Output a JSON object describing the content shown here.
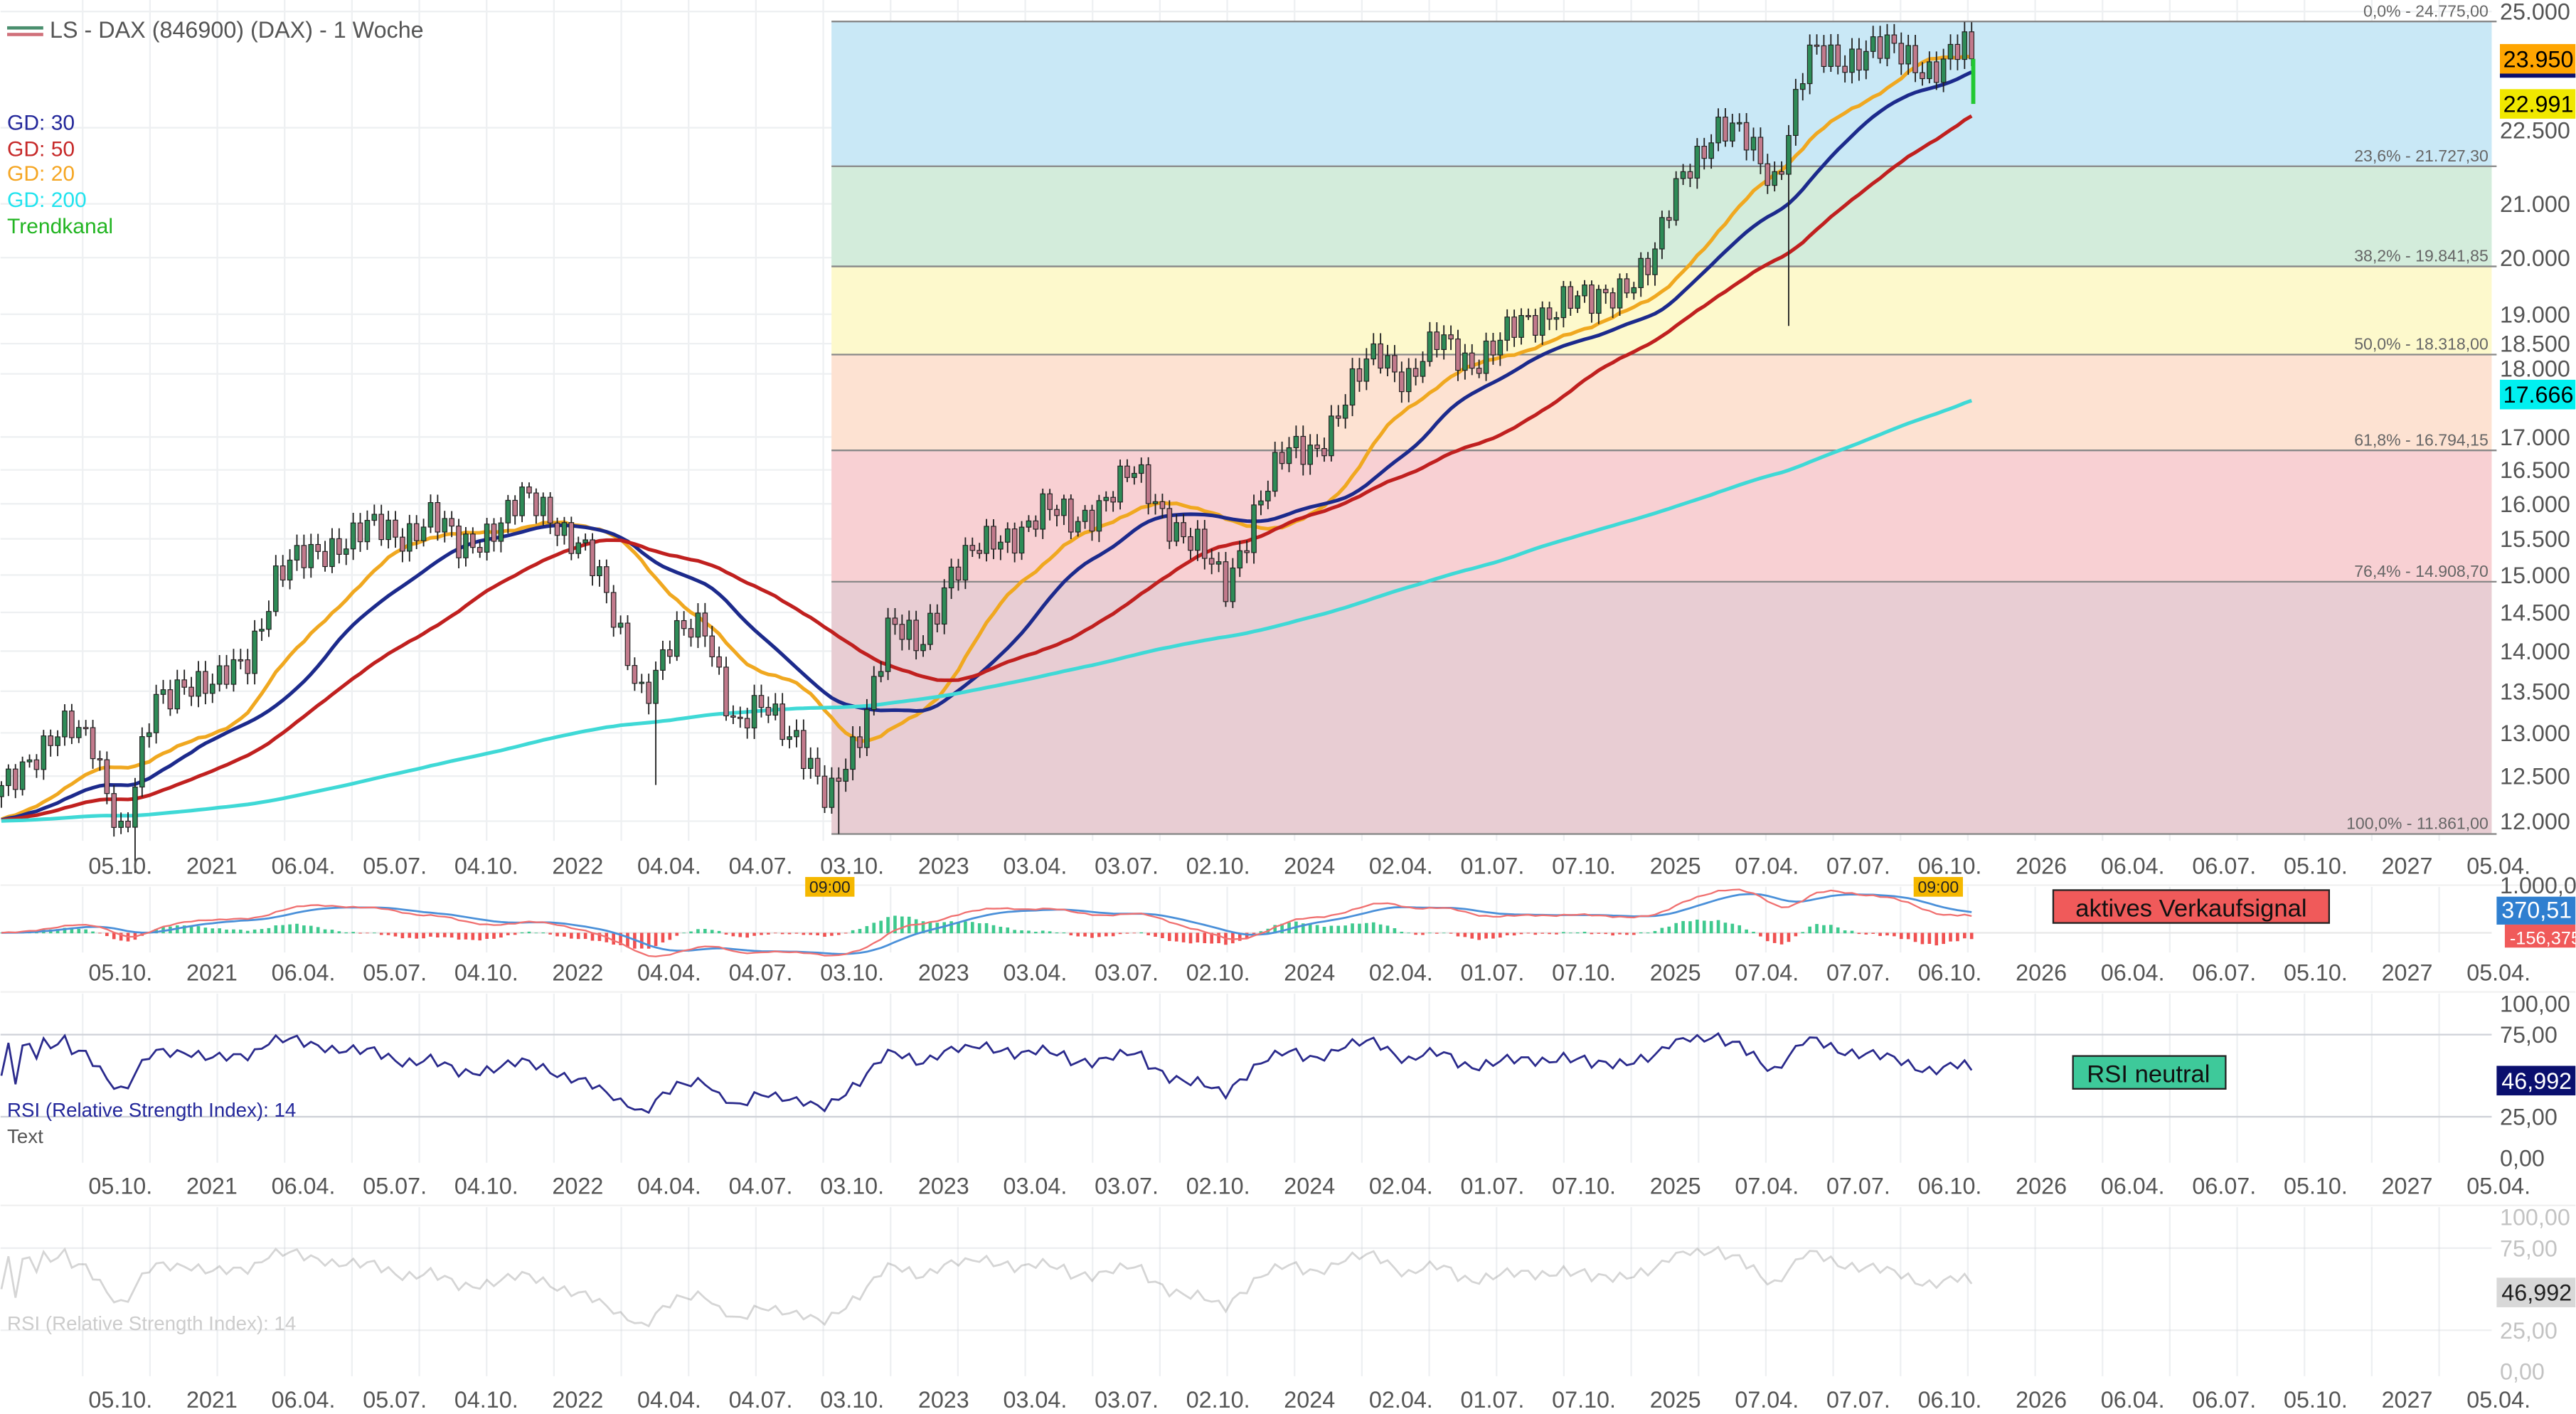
{
  "header": {
    "title": "LS - DAX (846900) (DAX) - 1 Woche"
  },
  "legend": [
    {
      "label": "GD: 30",
      "color": "#23279a"
    },
    {
      "label": "GD: 50",
      "color": "#c62828"
    },
    {
      "label": "GD: 20",
      "color": "#f5a623"
    },
    {
      "label": "GD: 200",
      "color": "#22e3ee"
    },
    {
      "label": "Trendkanal",
      "color": "#22b522"
    }
  ],
  "x_tick_labels": [
    "05.10.",
    "2021",
    "06.04.",
    "05.07.",
    "04.10.",
    "2022",
    "04.04.",
    "04.07.",
    "03.10.",
    "2023",
    "03.04.",
    "03.07.",
    "02.10.",
    "2024",
    "02.04.",
    "01.07.",
    "07.10.",
    "2025",
    "07.04.",
    "07.07.",
    "06.10.",
    "2026",
    "06.04.",
    "06.07.",
    "05.10.",
    "2027",
    "05.04."
  ],
  "time_badges": [
    "09:00",
    "09:00"
  ],
  "chart_data": [
    {
      "type": "candlestick",
      "title": "LS - DAX (846900) (DAX) - 1 Woche",
      "interval": "weekly",
      "scale": "log",
      "ylim": [
        11700,
        25000
      ],
      "monthly_start": "2020-06",
      "monthly_close": [
        12300,
        12800,
        13000,
        12900,
        11800,
        13300,
        13700,
        13500,
        13900,
        15000,
        15200,
        15500,
        15600,
        15550,
        15850,
        15300,
        15700,
        16000,
        15850,
        15400,
        14400,
        13500,
        14100,
        14400,
        13000,
        13300,
        13000,
        12100,
        13000,
        14300,
        14000,
        15100,
        15300,
        15600,
        15900,
        15700,
        16100,
        16400,
        15900,
        15400,
        14800,
        16000,
        16700,
        16900,
        17600,
        18400,
        17950,
        18500,
        18250,
        18500,
        18900,
        19300,
        19100,
        19600,
        19900,
        21700,
        22500,
        22200,
        21500,
        23900,
        23950,
        24200,
        24000,
        23800,
        24100
      ],
      "spikes": [
        {
          "month": "2020-10",
          "low": 11450
        },
        {
          "month": "2022-03",
          "low": 12400
        },
        {
          "month": "2022-09",
          "low": 11861
        },
        {
          "month": "2025-04",
          "low": 18800
        }
      ],
      "last_close": 23950,
      "price_ticks": [
        25000,
        22500,
        21000,
        20000,
        19000,
        18500,
        18000,
        17000,
        16500,
        16000,
        15500,
        15000,
        14500,
        14000,
        13500,
        13000,
        12500,
        12000
      ],
      "price_tick_labels": [
        "25.000",
        "22.500",
        "21.000",
        "20.000",
        "19.000",
        "18.500",
        "18.000",
        "17.000",
        "16.500",
        "16.000",
        "15.500",
        "15.000",
        "14.500",
        "14.000",
        "13.500",
        "13.000",
        "12.500",
        "12.000"
      ],
      "fib_levels": [
        {
          "label": "0,0% - 24.775,00",
          "value": 24775
        },
        {
          "label": "23,6% - 21.727,30",
          "value": 21727.3
        },
        {
          "label": "38,2% - 19.841,85",
          "value": 19841.85
        },
        {
          "label": "50,0% - 18.318,00",
          "value": 18318
        },
        {
          "label": "61,8% - 16.794,15",
          "value": 16794.15
        },
        {
          "label": "76,4% - 14.908,70",
          "value": 14908.7
        },
        {
          "label": "100,0% - 11.861,00",
          "value": 11861
        }
      ],
      "fib_colors": [
        "#c9e8f6",
        "#d3ecdb",
        "#fdf9cc",
        "#fde2d2",
        "#f8d0d3",
        "#e8cdd3"
      ],
      "moving_averages": [
        {
          "name": "GD: 20",
          "period": 20,
          "color": "#f0a820"
        },
        {
          "name": "GD: 30",
          "period": 30,
          "color": "#1c2a8c"
        },
        {
          "name": "GD: 50",
          "period": 50,
          "color": "#c0201f"
        },
        {
          "name": "GD: 200",
          "period": 200,
          "color": "#3fd9d6"
        }
      ],
      "trend_channel_low": 22991,
      "badges": [
        {
          "label": "23.950",
          "value": 23950,
          "bg": "#ffa500",
          "fg": "#000"
        },
        {
          "label": "22.991",
          "value": 22991,
          "bg": "#f0e800",
          "fg": "#000"
        },
        {
          "label": "17.666",
          "value": 17666,
          "bg": "#00f0f0",
          "fg": "#000"
        }
      ]
    },
    {
      "type": "line",
      "name": "MACD",
      "axis_label": "1.000,0",
      "value_label": "370,51",
      "hist_label": "-156,375",
      "signal_text": "aktives Verkaufsignal",
      "colors": {
        "macd": "#f07070",
        "signal": "#4a90d9",
        "hist_pos": "#3ec98e",
        "hist_neg": "#f05050"
      }
    },
    {
      "type": "line",
      "name": "RSI",
      "label": "RSI (Relative Strength Index): 14",
      "sub_label": "Text",
      "value_label": "46,992",
      "signal_text": "RSI neutral",
      "ylim": [
        0,
        100
      ],
      "ticks": [
        100,
        75,
        25,
        0
      ],
      "tick_labels": [
        "100,00",
        "75,00",
        "25,00",
        "0,00"
      ]
    }
  ]
}
